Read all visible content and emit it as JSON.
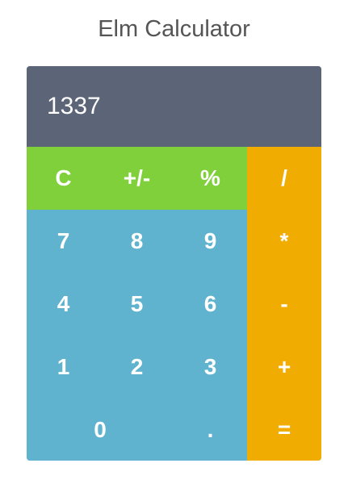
{
  "app": {
    "title": "Elm Calculator"
  },
  "display": {
    "value": "1337"
  },
  "buttons": {
    "clear": "C",
    "sign": "+/-",
    "percent": "%",
    "divide": "/",
    "seven": "7",
    "eight": "8",
    "nine": "9",
    "multiply": "*",
    "four": "4",
    "five": "5",
    "six": "6",
    "subtract": "-",
    "one": "1",
    "two": "2",
    "three": "3",
    "add": "+",
    "zero": "0",
    "decimal": ".",
    "equals": "="
  },
  "colors": {
    "display_bg": "#5c6478",
    "function_keys": "#80d03b",
    "number_keys": "#5fb3ce",
    "operator_keys": "#f0ac00"
  }
}
